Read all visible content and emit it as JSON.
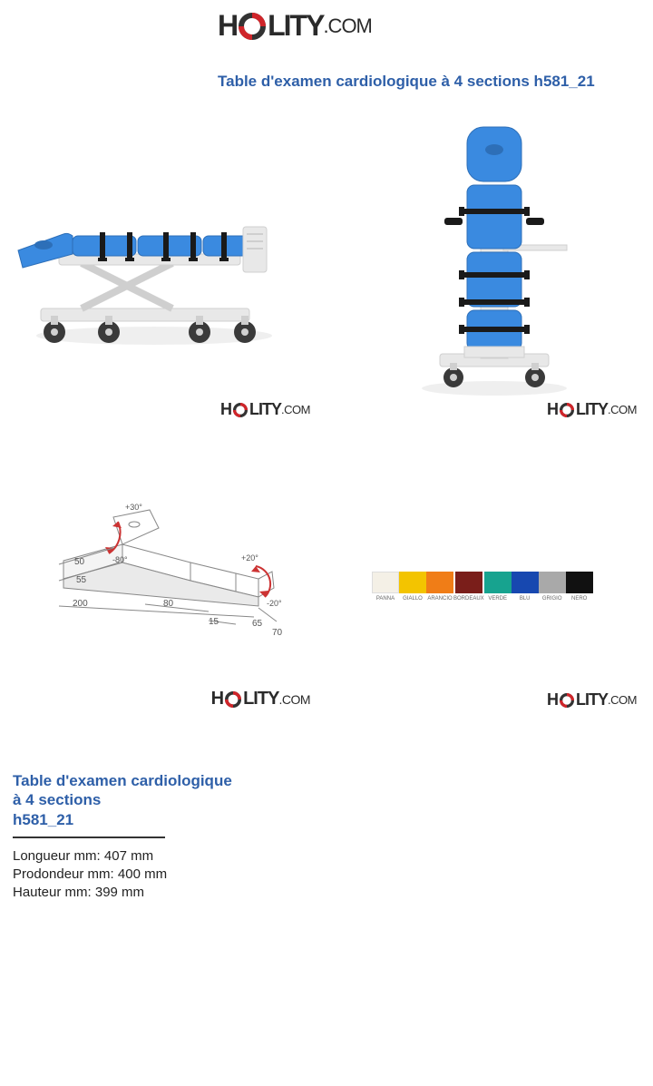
{
  "brand": {
    "text_h": "H",
    "text_lity": "LITY",
    "text_com": ".COM",
    "ring_color_dark": "#333333",
    "ring_color_accent": "#d0252a"
  },
  "title": "Table d'examen cardiologique à 4 sections h581_21",
  "info": {
    "line1": "Table d'examen cardiologique",
    "line2": "à 4 sections",
    "line3": "h581_21",
    "longueur_label": "Longueur mm: 407 mm",
    "profondeur_label": "Prodondeur mm: 400 mm",
    "hauteur_label": "Hauteur mm: 399 mm"
  },
  "colors": {
    "upholstery": "#3a8ae0",
    "upholstery_shadow": "#2d6fb8",
    "frame": "#e8e8e8",
    "frame_dark": "#cfcfcf",
    "strap": "#1a1a1a",
    "wheel": "#3a3a3a",
    "wheel_hub": "#d0d0d0"
  },
  "diagram": {
    "angle_head_up": "+30°",
    "angle_head_dn": "-80°",
    "angle_foot_up": "+20°",
    "angle_foot_dn": "-20°",
    "w_head": "50",
    "w_neck": "55",
    "w_total": "200",
    "w_mid": "80",
    "w_foot_ext": "15",
    "w_foot": "65",
    "w_overall": "70",
    "arrow_color": "#c33"
  },
  "swatches": [
    {
      "label": "PANNA",
      "hex": "#f4f0e6"
    },
    {
      "label": "GIALLO",
      "hex": "#f3c400"
    },
    {
      "label": "ARANCIO",
      "hex": "#f07d17"
    },
    {
      "label": "BORDEAUX",
      "hex": "#7a1e1a"
    },
    {
      "label": "VERDE",
      "hex": "#17a38f"
    },
    {
      "label": "BLU",
      "hex": "#1748b0"
    },
    {
      "label": "GRIGIO",
      "hex": "#a9a9a9"
    },
    {
      "label": "NERO",
      "hex": "#111111"
    }
  ]
}
